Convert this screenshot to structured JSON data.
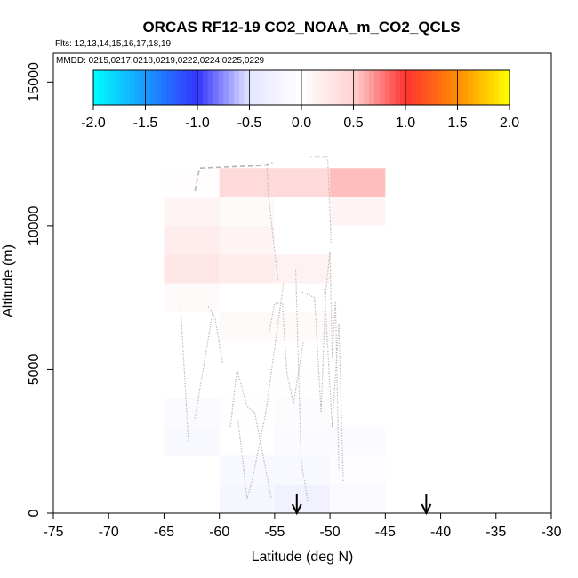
{
  "chart_data": {
    "type": "heatmap",
    "title": "ORCAS RF12-19 CO2_NOAA_m_CO2_QCLS",
    "subtitle_flights": "Flts: 12,13,14,15,16,17,18,19",
    "subtitle_dates": "MMDD: 0215,0217,0218,0219,0222,0224,0225,0229",
    "xlabel": "Latitude (deg N)",
    "ylabel": "Altitude (m)",
    "xlim": [
      -75,
      -30
    ],
    "ylim": [
      0,
      16000
    ],
    "x_ticks": [
      -75,
      -70,
      -65,
      -60,
      -55,
      -50,
      -45,
      -40,
      -35,
      -30
    ],
    "y_ticks": [
      0,
      5000,
      10000,
      15000
    ],
    "colorbar": {
      "range": [
        -2,
        2
      ],
      "ticks": [
        -2.0,
        -1.5,
        -1.0,
        -0.5,
        0.0,
        0.5,
        1.0,
        1.5,
        2.0
      ],
      "tick_labels": [
        "-2.0",
        "-1.5",
        "-1.0",
        "-0.5",
        "0.0",
        "0.5",
        "1.0",
        "1.5",
        "2.0"
      ]
    },
    "bin_width_deg": 5,
    "bin_height_m": 1000,
    "cells": [
      {
        "lat": -62.5,
        "alt": 11500,
        "value": 0.05
      },
      {
        "lat": -57.5,
        "alt": 11500,
        "value": 0.55
      },
      {
        "lat": -52.5,
        "alt": 11500,
        "value": 0.55
      },
      {
        "lat": -47.5,
        "alt": 11500,
        "value": 0.7
      },
      {
        "lat": -62.5,
        "alt": 10500,
        "value": 0.2
      },
      {
        "lat": -57.5,
        "alt": 10500,
        "value": 0.1
      },
      {
        "lat": -47.5,
        "alt": 10500,
        "value": 0.2
      },
      {
        "lat": -62.5,
        "alt": 9500,
        "value": 0.35
      },
      {
        "lat": -57.5,
        "alt": 9500,
        "value": 0.2
      },
      {
        "lat": -62.5,
        "alt": 8500,
        "value": 0.45
      },
      {
        "lat": -57.5,
        "alt": 8500,
        "value": 0.35
      },
      {
        "lat": -52.5,
        "alt": 8500,
        "value": 0.25
      },
      {
        "lat": -62.5,
        "alt": 7500,
        "value": 0.1
      },
      {
        "lat": -57.5,
        "alt": 6500,
        "value": 0.1
      },
      {
        "lat": -52.5,
        "alt": 6500,
        "value": 0.1
      },
      {
        "lat": -52.5,
        "alt": 4500,
        "value": -0.05
      },
      {
        "lat": -62.5,
        "alt": 3500,
        "value": -0.15
      },
      {
        "lat": -57.5,
        "alt": 3500,
        "value": -0.05
      },
      {
        "lat": -52.5,
        "alt": 3500,
        "value": -0.1
      },
      {
        "lat": -62.5,
        "alt": 2500,
        "value": -0.25
      },
      {
        "lat": -52.5,
        "alt": 2500,
        "value": -0.15
      },
      {
        "lat": -47.5,
        "alt": 2500,
        "value": -0.15
      },
      {
        "lat": -57.5,
        "alt": 1500,
        "value": -0.25
      },
      {
        "lat": -52.5,
        "alt": 1500,
        "value": -0.25
      },
      {
        "lat": -47.5,
        "alt": 1500,
        "value": -0.08
      },
      {
        "lat": -57.5,
        "alt": 500,
        "value": -0.3
      },
      {
        "lat": -52.5,
        "alt": 500,
        "value": -0.45
      },
      {
        "lat": -47.5,
        "alt": 500,
        "value": -0.2
      }
    ],
    "markers": [
      {
        "type": "arrow-down",
        "lat": -53.0
      },
      {
        "type": "arrow-down",
        "lat": -41.3
      }
    ]
  },
  "colors": {
    "flight_track": "#b4b4b4",
    "axis": "#000000"
  }
}
